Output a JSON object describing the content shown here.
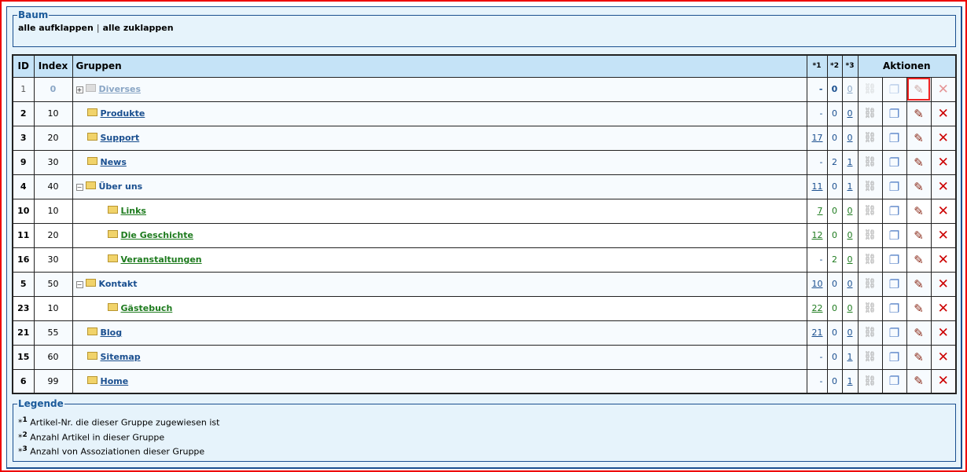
{
  "tree": {
    "legend": "Baum",
    "expand_all": "alle aufklappen",
    "separator": "|",
    "collapse_all": "alle zuklappen"
  },
  "table": {
    "headers": {
      "id": "ID",
      "index": "Index",
      "groups": "Gruppen",
      "c1": "*1",
      "c2": "*2",
      "c3": "*3",
      "actions": "Aktionen"
    },
    "rows": [
      {
        "id": "1",
        "index": "0",
        "name": "Diverses",
        "level": 0,
        "toggle": "+",
        "c1": "-",
        "c2": "0",
        "c3": "0",
        "disabled": true
      },
      {
        "id": "2",
        "index": "10",
        "name": "Produkte",
        "level": 0,
        "toggle": "",
        "c1": "-",
        "c2": "0",
        "c3": "0"
      },
      {
        "id": "3",
        "index": "20",
        "name": "Support",
        "level": 0,
        "toggle": "",
        "c1": "17",
        "c2": "0",
        "c3": "0"
      },
      {
        "id": "9",
        "index": "30",
        "name": "News",
        "level": 0,
        "toggle": "",
        "c1": "-",
        "c2": "2",
        "c3": "1"
      },
      {
        "id": "4",
        "index": "40",
        "name": "Über uns",
        "level": 0,
        "toggle": "−",
        "c1": "11",
        "c2": "0",
        "c3": "1"
      },
      {
        "id": "10",
        "index": "10",
        "name": "Links",
        "level": 1,
        "toggle": "",
        "c1": "7",
        "c2": "0",
        "c3": "0"
      },
      {
        "id": "11",
        "index": "20",
        "name": "Die Geschichte",
        "level": 1,
        "toggle": "",
        "c1": "12",
        "c2": "0",
        "c3": "0"
      },
      {
        "id": "16",
        "index": "30",
        "name": "Veranstaltungen",
        "level": 1,
        "toggle": "",
        "c1": "-",
        "c2": "2",
        "c3": "0"
      },
      {
        "id": "5",
        "index": "50",
        "name": "Kontakt",
        "level": 0,
        "toggle": "−",
        "c1": "10",
        "c2": "0",
        "c3": "0"
      },
      {
        "id": "23",
        "index": "10",
        "name": "Gästebuch",
        "level": 1,
        "toggle": "",
        "c1": "22",
        "c2": "0",
        "c3": "0"
      },
      {
        "id": "21",
        "index": "55",
        "name": "Blog",
        "level": 0,
        "toggle": "",
        "c1": "21",
        "c2": "0",
        "c3": "0"
      },
      {
        "id": "15",
        "index": "60",
        "name": "Sitemap",
        "level": 0,
        "toggle": "",
        "c1": "-",
        "c2": "0",
        "c3": "1"
      },
      {
        "id": "6",
        "index": "99",
        "name": "Home",
        "level": 0,
        "toggle": "",
        "c1": "-",
        "c2": "0",
        "c3": "1"
      }
    ]
  },
  "legend": {
    "title": "Legende",
    "items": [
      {
        "mark": "*",
        "sup": "1",
        "text": "Artikel-Nr. die dieser Gruppe zugewiesen ist"
      },
      {
        "mark": "*",
        "sup": "2",
        "text": "Anzahl Artikel in dieser Gruppe"
      },
      {
        "mark": "*",
        "sup": "3",
        "text": "Anzahl von Assoziationen dieser Gruppe"
      }
    ]
  },
  "icons": {
    "link": "link-icon",
    "copy": "copy-icon",
    "edit": "edit-pencil-icon",
    "delete": "delete-x-icon",
    "folder": "folder-icon"
  },
  "colors": {
    "accent": "#1a4f8f",
    "child_link": "#1e7b1e",
    "frame": "#e00000",
    "background": "#e6f3fb"
  }
}
